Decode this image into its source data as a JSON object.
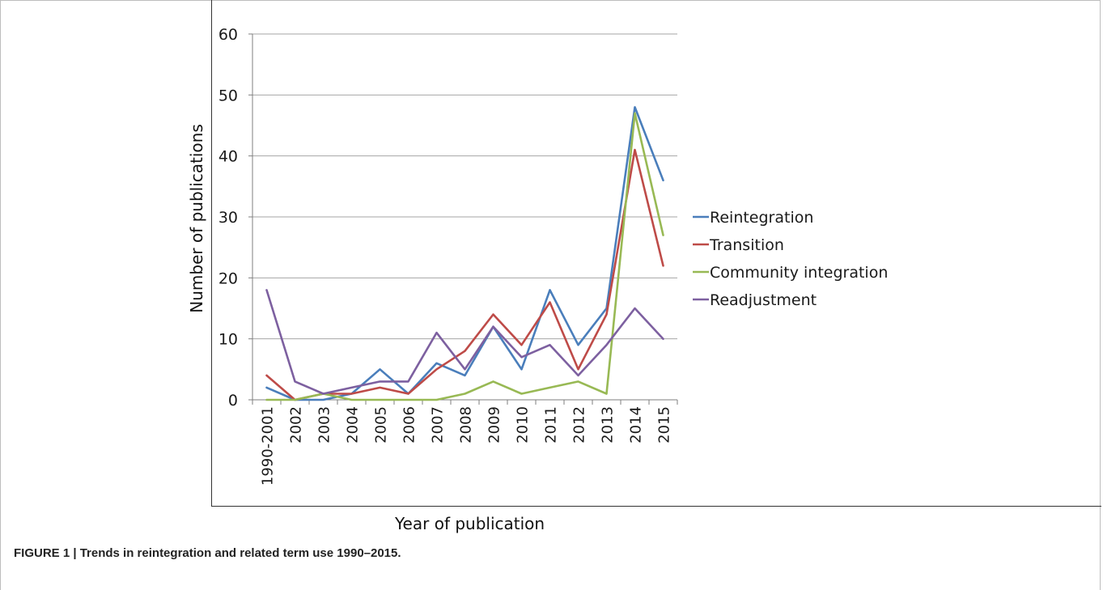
{
  "caption": "FIGURE 1 | Trends in reintegration and related term use 1990–2015.",
  "colors": {
    "grid": "#a6a6a6",
    "axis": "#7f7f7f",
    "text": "#1a1a1a"
  },
  "chart_data": {
    "type": "line",
    "title": "",
    "xlabel": "Year of publication",
    "ylabel": "Number of publications",
    "ylim": [
      0,
      60
    ],
    "yticks": [
      0,
      10,
      20,
      30,
      40,
      50,
      60
    ],
    "grid": true,
    "legend_position": "right",
    "categories": [
      "1990-2001",
      "2002",
      "2003",
      "2004",
      "2005",
      "2006",
      "2007",
      "2008",
      "2009",
      "2010",
      "2011",
      "2012",
      "2013",
      "2014",
      "2015"
    ],
    "series": [
      {
        "name": "Reintegration",
        "color": "#4a7ebb",
        "values": [
          2,
          0,
          0,
          1,
          5,
          1,
          6,
          4,
          12,
          5,
          18,
          9,
          15,
          48,
          36
        ]
      },
      {
        "name": "Transition",
        "color": "#be4b48",
        "values": [
          4,
          0,
          1,
          1,
          2,
          1,
          5,
          8,
          14,
          9,
          16,
          5,
          14,
          41,
          22
        ]
      },
      {
        "name": "Community integration",
        "color": "#98b954",
        "values": [
          0,
          0,
          1,
          0,
          0,
          0,
          0,
          1,
          3,
          1,
          2,
          3,
          1,
          47,
          27
        ]
      },
      {
        "name": "Readjustment",
        "color": "#7d60a0",
        "values": [
          18,
          3,
          1,
          2,
          3,
          3,
          11,
          5,
          12,
          7,
          9,
          4,
          9,
          15,
          10
        ]
      }
    ]
  }
}
